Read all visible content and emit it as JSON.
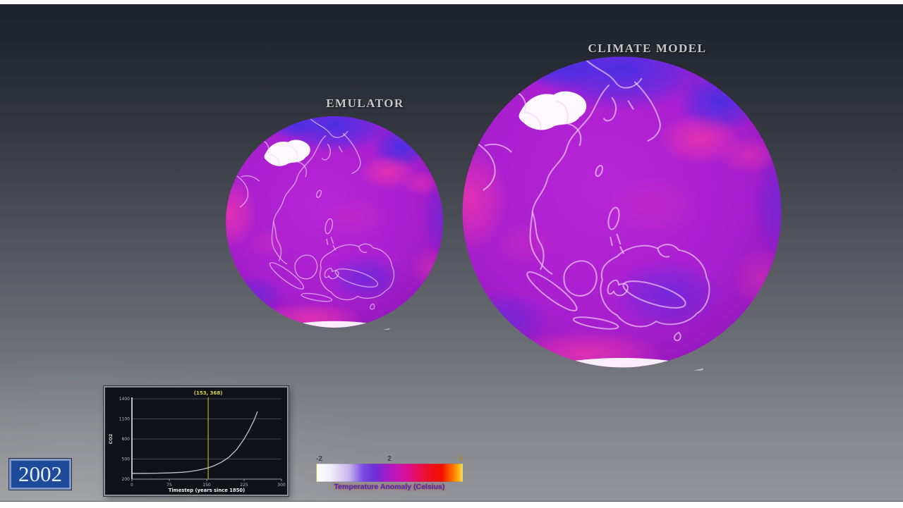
{
  "scene": {
    "emulator_label": "EMULATOR",
    "climate_model_label": "CLIMATE MODEL",
    "description": "Side-by-side globes comparing emulator output against climate model temperature anomaly over the Asia-Pacific region",
    "background_top": "#1d212b",
    "background_bottom": "#97989d"
  },
  "globe_palette": {
    "base": "#a81fce",
    "cool_anomaly": "#4530e6",
    "warm_anomaly": "#ee35ae",
    "ice_white": "#ffffff",
    "coastline": "#f2d4f4"
  },
  "year_badge": {
    "text": "2002",
    "background": "#1d4a99",
    "border": "#7e97c8"
  },
  "chart_data": [
    {
      "type": "line",
      "title": "",
      "ylabel": "CO2",
      "xlabel": "Timestep (years since 1850)",
      "xlim": [
        0,
        300
      ],
      "ylim": [
        200,
        1400
      ],
      "xticks": [
        0,
        75,
        150,
        225,
        300
      ],
      "yticks": [
        200,
        500,
        800,
        1100,
        1400
      ],
      "grid": true,
      "marker": {
        "x": 153,
        "y": 368,
        "label": "(153, 368)",
        "color": "#9a9a2e",
        "label_color": "#d6d640"
      },
      "series": [
        {
          "name": "CO2 concentration",
          "color": "#c2c2c6",
          "points": [
            [
              0,
              285
            ],
            [
              25,
              286
            ],
            [
              50,
              288
            ],
            [
              75,
              293
            ],
            [
              100,
              302
            ],
            [
              115,
              312
            ],
            [
              130,
              330
            ],
            [
              140,
              345
            ],
            [
              153,
              368
            ],
            [
              165,
              400
            ],
            [
              180,
              455
            ],
            [
              195,
              530
            ],
            [
              210,
              640
            ],
            [
              225,
              800
            ],
            [
              235,
              930
            ],
            [
              245,
              1080
            ],
            [
              252,
              1210
            ]
          ]
        }
      ]
    },
    {
      "type": "colorbar",
      "label": "Temperature Anomaly (Celsius)",
      "range": [
        -2,
        6
      ],
      "ticks": [
        {
          "value": "-2",
          "pos": "0%"
        },
        {
          "value": "2",
          "pos": "50%"
        },
        {
          "value": "6",
          "pos": "100%"
        }
      ],
      "gradient": [
        {
          "pos": "0%",
          "color": "#ffffff"
        },
        {
          "pos": "10%",
          "color": "#f0ecfa"
        },
        {
          "pos": "22%",
          "color": "#c9b6ee"
        },
        {
          "pos": "32%",
          "color": "#7a4ae0"
        },
        {
          "pos": "40%",
          "color": "#6e2ed8"
        },
        {
          "pos": "48%",
          "color": "#a21cc8"
        },
        {
          "pos": "55%",
          "color": "#c415b4"
        },
        {
          "pos": "63%",
          "color": "#d90f8f"
        },
        {
          "pos": "70%",
          "color": "#e80f55"
        },
        {
          "pos": "78%",
          "color": "#ee0f1f"
        },
        {
          "pos": "86%",
          "color": "#f11000"
        },
        {
          "pos": "93%",
          "color": "#ff6a00"
        },
        {
          "pos": "100%",
          "color": "#ffd81e"
        }
      ]
    }
  ]
}
